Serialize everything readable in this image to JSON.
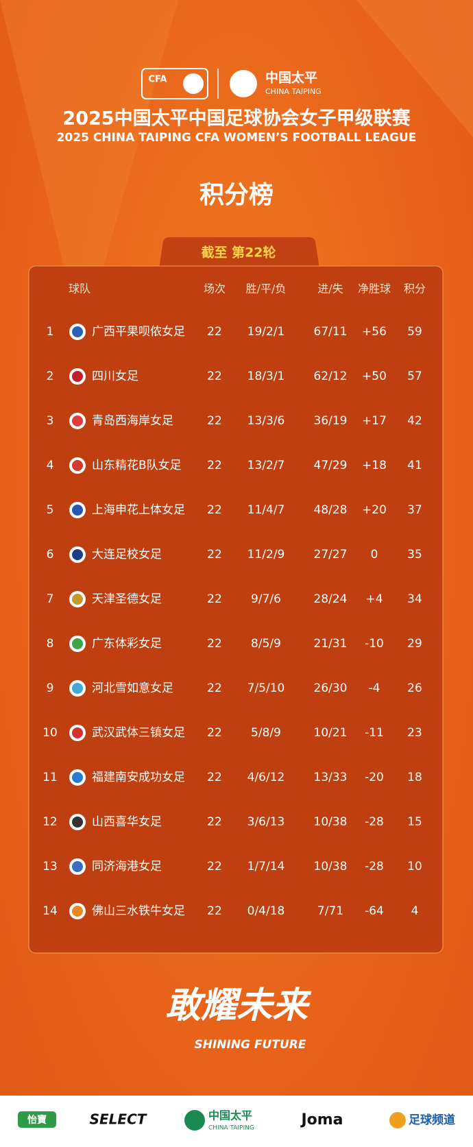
{
  "header": {
    "cfa_logo": "CFA",
    "sponsor_name": "中国太平",
    "sponsor_name_en": "CHINA TAIPING",
    "title": "2025中国太平中国足球协会女子甲级联赛",
    "title_en": "2025 CHINA TAIPING CFA WOMEN’S FOOTBALL LEAGUE",
    "heading": "积分榜",
    "round": "截至 第22轮"
  },
  "table": {
    "columns": [
      "球队",
      "场次",
      "胜/平/负",
      "进/失",
      "净胜球",
      "积分"
    ],
    "rows": [
      [
        1,
        "广西平果呗侬女足",
        22,
        "19/2/1",
        "67/11",
        "+56",
        59
      ],
      [
        2,
        "四川女足",
        22,
        "18/3/1",
        "62/12",
        "+50",
        57
      ],
      [
        3,
        "青岛西海岸女足",
        22,
        "13/3/6",
        "36/19",
        "+17",
        42
      ],
      [
        4,
        "山东精花B队女足",
        22,
        "13/2/7",
        "47/29",
        "+18",
        41
      ],
      [
        5,
        "上海申花上体女足",
        22,
        "11/4/7",
        "48/28",
        "+20",
        37
      ],
      [
        6,
        "大连足校女足",
        22,
        "11/2/9",
        "27/27",
        "0",
        35
      ],
      [
        7,
        "天津圣德女足",
        22,
        "9/7/6",
        "28/24",
        "+4",
        34
      ],
      [
        8,
        "广东体彩女足",
        22,
        "8/5/9",
        "21/31",
        "-10",
        29
      ],
      [
        9,
        "河北雪如意女足",
        22,
        "7/5/10",
        "26/30",
        "-4",
        26
      ],
      [
        10,
        "武汉武体三镇女足",
        22,
        "5/8/9",
        "10/21",
        "-11",
        23
      ],
      [
        11,
        "福建南安成功女足",
        22,
        "4/6/12",
        "13/33",
        "-20",
        18
      ],
      [
        12,
        "山西喜华女足",
        22,
        "3/6/13",
        "10/38",
        "-28",
        15
      ],
      [
        13,
        "同济海港女足",
        22,
        "1/7/14",
        "10/38",
        "-28",
        10
      ],
      [
        14,
        "佛山三水铁牛女足",
        22,
        "0/4/18",
        "7/71",
        "-64",
        4
      ]
    ]
  },
  "slogan": {
    "text": "敢耀未来",
    "text_en": "SHINING FUTURE"
  },
  "footer": {
    "sponsors": [
      "怡寶",
      "SELECT",
      "中国太平",
      "CHINA TAIPING",
      "Joma",
      "足球频道"
    ]
  }
}
